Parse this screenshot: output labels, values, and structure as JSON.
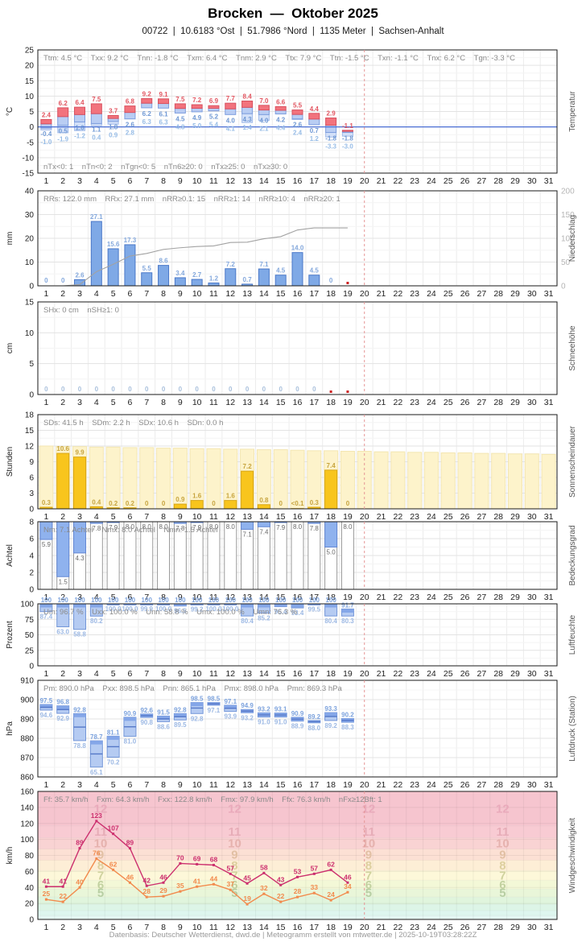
{
  "header": {
    "title": "Brocken  —  Oktober 2025",
    "subtitle": "00722  |  10.6183 °Ost  |  51.7986 °Nord  |  1135 Meter  |  Sachsen-Anhalt"
  },
  "footer": {
    "text": "Datenbasis: Deutscher Wetterdienst, dwd.de | Meteogramm erstellt von mtwetter.de | 2025-10-19T03:28:22Z"
  },
  "days_total": 31,
  "days_with_data": 19,
  "current_day_marker": 19.5,
  "colors": {
    "frame": "#1a1a1a",
    "grid_v": "#ececec",
    "grid_h": "#e3e3e3",
    "grid_minor": "#f4f4f4",
    "tick_text": "#222222",
    "stats_text": "#8a8a8a",
    "panel_label": "#555555",
    "marker_dashed": "#e59595",
    "missing_dot": "#cc2222",
    "zero_line": "#4a6fd4",
    "temp_max_fill": "#f2737d",
    "temp_max_stroke": "#d8505e",
    "temp_min_fill": "#b9cdf3",
    "temp_min_stroke": "#7e9ede",
    "temp_ground_fill": "#d3e0f8",
    "temp_ground_stroke": "#a3bcea",
    "label_red": "#e25560",
    "label_blue": "#6f98d4",
    "label_lightblue": "#97bce6",
    "precip_fill": "#7fa9e6",
    "precip_stroke": "#4a78c8",
    "precip_label": "#84a8dc",
    "cumulative_line": "#a2a2a2",
    "y2_text": "#b5b5b5",
    "snow_label": "#a9c0dc",
    "sun_fill": "#f8c51d",
    "sun_stroke": "#d9a716",
    "sun_bg_fill": "#fdf3cb",
    "sun_bg_stroke": "#f3e6b2",
    "sun_label": "#c7a43e",
    "cloud_fill": "#8fb2ee",
    "cloud_stroke": "#6488d4",
    "cloud_frame": "#9a9a9a",
    "cloud_label": "#6a6a6a",
    "range_fill": "#b5cbf2",
    "range_stroke": "#7396d8",
    "range_cap": "#84a6e8",
    "range_mean": "#5578c8",
    "label_max": "#7da3de",
    "label_min": "#9db9e4"
  },
  "chart_data": [
    {
      "id": "temperatur",
      "type": "bar",
      "panel_label": "Temperatur",
      "unit": "°C",
      "ylim": [
        -15,
        25
      ],
      "yticks": [
        -15,
        -10,
        -5,
        0,
        5,
        10,
        15,
        20,
        25
      ],
      "stats_top": [
        "Ttm: 4.5 °C",
        "Txx: 9.2 °C",
        "Tnn: -1.8 °C",
        "Txm: 6.4 °C",
        "Tnm: 2.9 °C",
        "Ttx: 7.9 °C",
        "Ttn: -1.5 °C",
        "Txn: -1.1 °C",
        "Tnx: 6.2 °C",
        "Tgn: -3.3 °C"
      ],
      "stats_bottom": [
        "nTx<0: 1",
        "nTn<0: 2",
        "nTgn<0: 5",
        "nTn6≥20: 0",
        "nTx≥25: 0",
        "nTx≥30: 0"
      ],
      "series": [
        {
          "name": "Tmax",
          "values": [
            2.4,
            6.2,
            6.4,
            7.5,
            3.7,
            6.8,
            9.2,
            9.1,
            7.5,
            7.2,
            6.9,
            7.7,
            8.4,
            7.0,
            6.6,
            5.5,
            4.4,
            2.9,
            -1.1
          ]
        },
        {
          "name": "Tmin",
          "values": [
            -0.4,
            0.5,
            1.6,
            1.1,
            1.8,
            2.6,
            6.2,
            6.1,
            4.5,
            4.9,
            5.2,
            4.0,
            4.3,
            4.0,
            4.2,
            2.6,
            0.7,
            -1.8,
            -1.8
          ]
        },
        {
          "name": "Tgmin",
          "values": [
            -1.0,
            -1.9,
            -1.2,
            0.4,
            0.9,
            2.8,
            6.3,
            6.3,
            4.8,
            5.0,
            5.4,
            4.1,
            1.4,
            2.1,
            4.4,
            2.4,
            1.2,
            -3.3,
            -3.0
          ]
        }
      ]
    },
    {
      "id": "niederschlag",
      "type": "bar",
      "panel_label": "Niederschlag",
      "unit": "mm",
      "ylim": [
        0,
        40
      ],
      "yticks": [
        0,
        10,
        20,
        30,
        40
      ],
      "y2ticks": [
        0,
        50,
        100,
        150,
        200
      ],
      "stats_top": [
        "RRs: 122.0 mm",
        "RRx: 27.1 mm",
        "nRR≥0.1: 15",
        "nRR≥1: 14",
        "nRR≥10: 4",
        "nRR≥20: 1"
      ],
      "values": [
        0,
        0,
        2.6,
        27.1,
        15.6,
        17.3,
        5.5,
        8.6,
        3.4,
        2.7,
        1.2,
        7.2,
        0.7,
        7.1,
        4.5,
        14.0,
        4.5,
        0,
        null
      ],
      "labels": [
        "0",
        "0",
        "2.6",
        "27.1",
        "15.6",
        "17.3",
        "5.5",
        "8.6",
        "3.4",
        "2.7",
        "1.2",
        "7.2",
        "0.7",
        "7.1",
        "4.5",
        "14.0",
        "4.5",
        "0",
        ""
      ],
      "cumulative": [
        0,
        0,
        2.6,
        29.7,
        45.3,
        62.6,
        68.1,
        76.7,
        80.1,
        82.8,
        84.0,
        91.2,
        91.9,
        99.0,
        103.5,
        117.5,
        122.0,
        122.0,
        122.0
      ],
      "missing_days": [
        19
      ]
    },
    {
      "id": "schneehoehe",
      "type": "bar",
      "panel_label": "Schneehöhe",
      "unit": "cm",
      "ylim": [
        0,
        15
      ],
      "yticks": [
        0,
        5,
        10,
        15
      ],
      "stats_top": [
        "SHx: 0 cm",
        "nSH≥1: 0"
      ],
      "values": [
        0,
        0,
        0,
        0,
        0,
        0,
        0,
        0,
        0,
        0,
        0,
        0,
        0,
        0,
        0,
        0,
        0,
        null,
        null
      ],
      "labels": [
        "0",
        "0",
        "0",
        "0",
        "0",
        "0",
        "0",
        "0",
        "0",
        "0",
        "0",
        "0",
        "0",
        "0",
        "0",
        "0",
        "0",
        "",
        ""
      ],
      "missing_days": [
        18,
        19
      ]
    },
    {
      "id": "sonnenscheindauer",
      "type": "bar",
      "panel_label": "Sonnenscheindauer",
      "unit": "Stunden",
      "ylim": [
        0,
        18
      ],
      "yticks": [
        0,
        3,
        6,
        9,
        12,
        15,
        18
      ],
      "stats_top": [
        "SDs: 41.5 h",
        "SDm: 2.2 h",
        "SDx: 10.6 h",
        "SDn: 0.0 h"
      ],
      "values": [
        0.3,
        10.6,
        9.9,
        0.4,
        0.2,
        0.2,
        0,
        0,
        0.9,
        1.6,
        0,
        1.6,
        7.2,
        0.8,
        0,
        0.05,
        0.3,
        7.4,
        0
      ],
      "labels": [
        "0.3",
        "10.6",
        "9.9",
        "0.4",
        "0.2",
        "0.2",
        "0",
        "0",
        "0.9",
        "1.6",
        "0",
        "1.6",
        "7.2",
        "0.8",
        "0",
        "<0.1",
        "0.3",
        "7.4",
        "0"
      ],
      "daylight_max": [
        12.0,
        11.9,
        11.9,
        11.8,
        11.8,
        11.7,
        11.7,
        11.6,
        11.6,
        11.5,
        11.5,
        11.4,
        11.4,
        11.3,
        11.3,
        11.2,
        11.1,
        11.1,
        11.0,
        11.0,
        10.9,
        10.9,
        10.8,
        10.8,
        10.7,
        10.7,
        10.6,
        10.6,
        10.5,
        10.5,
        10.4
      ]
    },
    {
      "id": "bedeckungsgrad",
      "type": "bar",
      "panel_label": "Bedeckungsgrad",
      "unit": "Achtel",
      "ylim": [
        0,
        8
      ],
      "yticks": [
        0,
        2,
        4,
        6,
        8
      ],
      "stats_top": [
        "Nm: 7.1 Achtel",
        "Nmx: 8.0 Achtel",
        "Nmn: 1.5 Achtel"
      ],
      "values": [
        5.9,
        1.5,
        4.3,
        7.8,
        7.9,
        8.0,
        8.0,
        8.0,
        7.8,
        7.9,
        8.0,
        8.0,
        7.1,
        7.4,
        7.9,
        8.0,
        7.8,
        5.0,
        8.0
      ],
      "labels": [
        "5.9",
        "1.5",
        "4.3",
        "7.8",
        "7.9",
        "8.0",
        "8.0",
        "8.0",
        "7.8",
        "7.9",
        "8.0",
        "8.0",
        "7.1",
        "7.4",
        "7.9",
        "8.0",
        "7.8",
        "5.0",
        "8.0"
      ]
    },
    {
      "id": "luftfeuchte",
      "type": "range",
      "panel_label": "Luftfeuchte",
      "unit": "Prozent",
      "ylim": [
        0,
        100
      ],
      "yticks": [
        0,
        25,
        50,
        75,
        100
      ],
      "stats_top": [
        "Um: 96.7 %",
        "Uxx: 100.0 %",
        "Unn: 58.8 %",
        "Umx: 100.0 %",
        "Umn: 76.3 %"
      ],
      "series": [
        {
          "name": "Umax",
          "values": [
            100,
            100,
            100,
            100,
            100,
            100,
            100,
            100,
            100,
            100,
            100,
            100,
            100,
            100,
            100,
            100,
            100,
            100,
            91.7
          ]
        },
        {
          "name": "Umin",
          "values": [
            87.4,
            63.0,
            58.8,
            80.2,
            100.0,
            100.0,
            99.9,
            100.0,
            96.5,
            99.2,
            100.0,
            100.0,
            80.4,
            85.2,
            95.4,
            93.4,
            99.5,
            80.4,
            80.3
          ]
        }
      ],
      "max_labels": [
        "100",
        "100",
        "100",
        "100",
        "100",
        "100",
        "100",
        "100",
        "100",
        "100",
        "100",
        "100",
        "100",
        "100",
        "100",
        "100",
        "100",
        "100",
        "91.7"
      ],
      "min_labels": [
        "87.4",
        "63.0",
        "58.8",
        "80.2",
        "100.0",
        "100.0",
        "99.9",
        "100.0",
        "96.5",
        "99.2",
        "100.0",
        "100.0",
        "80.4",
        "85.2",
        "95.4",
        "93.4",
        "99.5",
        "80.4",
        "80.3"
      ]
    },
    {
      "id": "luftdruck",
      "type": "range",
      "panel_label": "Luftdruck (Station)",
      "unit": "hPa",
      "ylim": [
        860,
        910
      ],
      "yticks": [
        860,
        870,
        880,
        890,
        900,
        910
      ],
      "stats_top": [
        "Pm: 890.0 hPa",
        "Pxx: 898.5 hPa",
        "Pnn: 865.1 hPa",
        "Pmx: 898.0 hPa",
        "Pmn: 869.3 hPa"
      ],
      "series": [
        {
          "name": "Pmax",
          "values": [
            897.5,
            896.8,
            892.8,
            878.7,
            881.1,
            890.9,
            892.6,
            891.5,
            892.8,
            898.5,
            898.5,
            897.1,
            894.9,
            893.2,
            893.1,
            890.9,
            889.2,
            893.3,
            890.2
          ]
        },
        {
          "name": "Pmin",
          "values": [
            894.6,
            892.9,
            878.8,
            865.1,
            870.2,
            881.0,
            890.8,
            888.6,
            889.5,
            892.8,
            897.1,
            893.9,
            893.2,
            891.0,
            891.0,
            888.9,
            888.0,
            889.2,
            888.3
          ]
        }
      ],
      "max_labels": [
        "97.5",
        "96.8",
        "92.8",
        "78.7",
        "81.1",
        "90.9",
        "92.6",
        "91.5",
        "92.8",
        "98.5",
        "98.5",
        "97.1",
        "94.9",
        "93.2",
        "93.1",
        "90.9",
        "89.2",
        "93.3",
        "90.2"
      ],
      "min_labels": [
        "94.6",
        "92.9",
        "78.8",
        "65.1",
        "70.2",
        "81.0",
        "90.8",
        "88.6",
        "89.5",
        "92.8",
        "97.1",
        "93.9",
        "93.2",
        "91.0",
        "91.0",
        "88.9",
        "88.0",
        "89.2",
        "88.3"
      ],
      "mean_line": true
    },
    {
      "id": "windgeschwindigkeit",
      "type": "line",
      "panel_label": "Windgeschwindigkeit",
      "unit": "km/h",
      "ylim": [
        0,
        160
      ],
      "yticks": [
        0,
        20,
        40,
        60,
        80,
        100,
        120,
        140,
        160
      ],
      "stats_top": [
        "Ff: 35.7 km/h",
        "Fxm: 64.3 km/h",
        "Fxx: 122.8 km/h",
        "Fmx: 97.9 km/h",
        "Ffx: 76.3 km/h",
        "nFx≥12Bft: 1"
      ],
      "series": [
        {
          "name": "Windspitze",
          "color": "#cc2f6e",
          "values": [
            41,
            41,
            89,
            123,
            107,
            89,
            42,
            46,
            70,
            69,
            68,
            57,
            45,
            58,
            43,
            53,
            57,
            62,
            46
          ]
        },
        {
          "name": "Windmittel",
          "color": "#f28a4d",
          "values": [
            25,
            22,
            40,
            76,
            62,
            46,
            28,
            29,
            35,
            41,
            44,
            37,
            19,
            32,
            22,
            28,
            33,
            24,
            34
          ]
        }
      ],
      "beaufort": {
        "edges": [
          0,
          1,
          5,
          11,
          19,
          28,
          38,
          49,
          61,
          74,
          88,
          102,
          117,
          160
        ],
        "band_colors": [
          "#f2fbf9",
          "#e4f7f3",
          "#def6ef",
          "#ddf5e7",
          "#e0f5dd",
          "#e9f6d9",
          "#f3f8d7",
          "#fdf8d9",
          "#fdeed6",
          "#fce0d4",
          "#f9d3d3",
          "#f8cbd3",
          "#f6c5cf"
        ],
        "label_bfts": [
          5,
          6,
          7,
          8,
          9,
          10,
          11,
          12
        ],
        "label_colors": [
          "#b8cfa4",
          "#c2d1a0",
          "#d0d29e",
          "#ddcf9e",
          "#e2c0a4",
          "#e6b2ae",
          "#e7adb8",
          "#e9aabb"
        ],
        "label_day_columns": [
          4,
          12,
          20,
          28
        ]
      }
    }
  ]
}
